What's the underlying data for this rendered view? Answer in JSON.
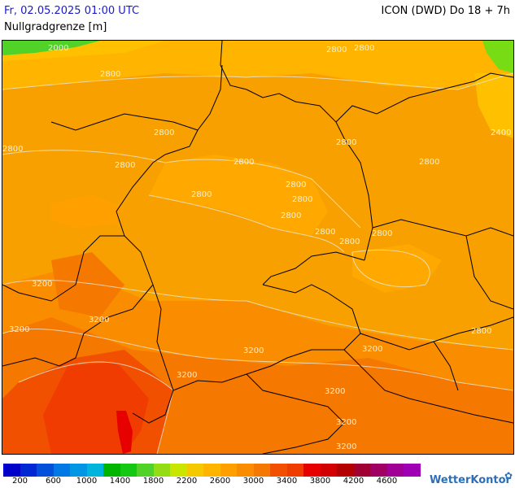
{
  "header": {
    "date": "Fr, 02.05.2025 01:00 UTC",
    "model": "ICON (DWD) Do 18 + 7h",
    "parameter": "Nullgradgrenze [m]"
  },
  "colors": {
    "background_field": "#f79a00",
    "borders": "#000000",
    "isolines": "#e8e8d8",
    "brand": "#2a6fb8",
    "date_text": "#1a1ac8"
  },
  "contour_labels": [
    "2800",
    "2800",
    "2800",
    "2800",
    "2800",
    "2800",
    "2800",
    "2800",
    "2800",
    "2800",
    "2800",
    "2800",
    "2800",
    "2800",
    "2800",
    "2800",
    "3200",
    "3200",
    "3200",
    "3200",
    "3200",
    "3200",
    "3200",
    "3200",
    "3200",
    "2800",
    "2000",
    "2400"
  ],
  "legend": {
    "colors": [
      "#0000c8",
      "#0028d2",
      "#0050dc",
      "#0078e6",
      "#0096e6",
      "#00b4dc",
      "#00b400",
      "#14c814",
      "#50d228",
      "#96dc14",
      "#c8e600",
      "#f5c800",
      "#ffb400",
      "#ffa000",
      "#fa8c00",
      "#f57800",
      "#f05000",
      "#f03c00",
      "#e60000",
      "#d20000",
      "#b40000",
      "#a00032",
      "#a00064",
      "#a00096",
      "#a000b4"
    ],
    "ticks": [
      "200",
      "600",
      "1000",
      "1400",
      "1800",
      "2200",
      "2600",
      "3000",
      "3400",
      "3800",
      "4200",
      "4600"
    ]
  },
  "brand": {
    "name": "WetterKontor",
    "icon": "wetterkontor-logo-icon"
  }
}
